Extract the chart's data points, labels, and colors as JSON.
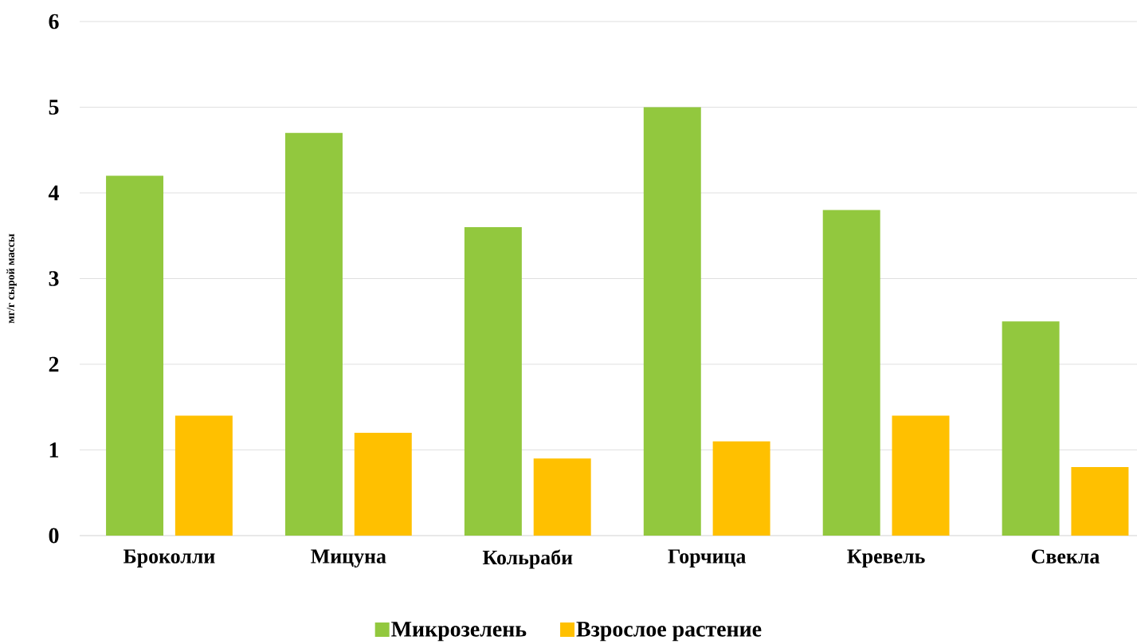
{
  "chart_data": {
    "type": "bar",
    "ylabel": "мг/г сырой массы",
    "categories": [
      "Броколли",
      "Мицуна",
      "Кольраби",
      "Горчица",
      "Кревель",
      "Свекла"
    ],
    "series": [
      {
        "name": "Микрозелень",
        "color": "#92c83e",
        "values": [
          4.2,
          4.7,
          3.6,
          5.0,
          3.8,
          2.5
        ]
      },
      {
        "name": "Взрослое растение",
        "color": "#ffc000",
        "values": [
          1.4,
          1.2,
          0.9,
          1.1,
          1.4,
          0.8
        ]
      }
    ],
    "ylim": [
      0,
      6
    ],
    "yticks": [
      0,
      1,
      2,
      3,
      4,
      5,
      6
    ],
    "grid": "y",
    "legend": "bottom"
  }
}
